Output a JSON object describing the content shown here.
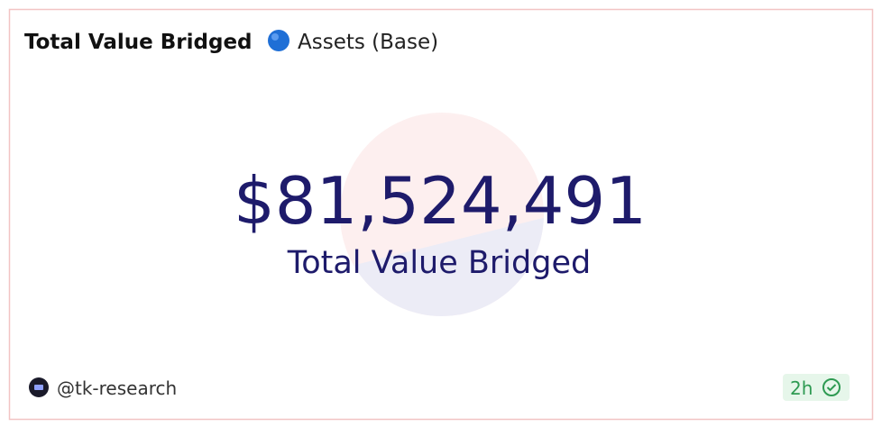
{
  "header": {
    "title": "Total Value Bridged",
    "subtitle": "Assets (Base)"
  },
  "counter": {
    "value": "$81,524,491",
    "label": "Total Value Bridged"
  },
  "footer": {
    "author": "@tk-research",
    "age": "2h"
  }
}
